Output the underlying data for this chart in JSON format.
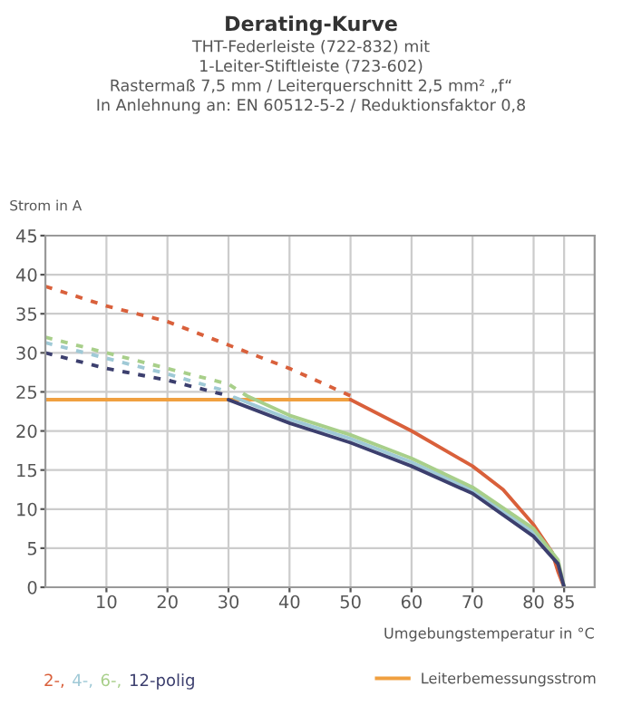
{
  "chart_data": {
    "type": "line",
    "title": "Derating-Kurve",
    "subtitle": "THT-Federleiste (722-832) mit\n1-Leiter-Stiftleiste (723-602)\nRastermaß 7,5 mm / Leiterquerschnitt 2,5 mm² „f“\nIn Anlehnung an: EN 60512-5-2 / Reduktionsfaktor 0,8",
    "xlabel": "Umgebungstemperatur in °C",
    "ylabel": "Strom in A",
    "xlim": [
      0,
      90
    ],
    "ylim": [
      0,
      45
    ],
    "xticks": [
      10,
      20,
      30,
      40,
      50,
      60,
      70,
      80,
      85
    ],
    "yticks": [
      0,
      5,
      10,
      15,
      20,
      25,
      30,
      35,
      40,
      45
    ],
    "grid": true,
    "legend": "bottom",
    "marker": "none",
    "series": [
      {
        "x": [
          0,
          10,
          20,
          30,
          40,
          50
        ],
        "values": [
          38.5,
          36,
          34,
          31,
          28,
          24.5
        ],
        "color": "#d9603b",
        "line_style": "dashed"
      },
      {
        "x": [
          0,
          10,
          20,
          30
        ],
        "values": [
          31.3,
          29.3,
          27.3,
          25
        ],
        "color": "#9fc9d6",
        "line_style": "dashed"
      },
      {
        "x": [
          0,
          10,
          20,
          30,
          33
        ],
        "values": [
          32,
          30,
          28,
          26,
          24.5
        ],
        "color": "#a8cf8a",
        "line_style": "dashed"
      },
      {
        "x": [
          0,
          10,
          20,
          30
        ],
        "values": [
          30,
          28,
          26.5,
          24.5
        ],
        "color": "#3c3f6e",
        "line_style": "dashed"
      },
      {
        "name": "Leiterbemessungsstrom",
        "x": [
          0,
          50
        ],
        "values": [
          24,
          24
        ],
        "color": "#f0a040",
        "line_style": "solid"
      },
      {
        "name": "2-,",
        "x": [
          50,
          60,
          70,
          75,
          80,
          83,
          84,
          85
        ],
        "values": [
          24,
          20,
          15.5,
          12.5,
          8,
          4.5,
          2,
          0
        ],
        "color": "#d9603b",
        "line_style": "solid"
      },
      {
        "name": "4-,",
        "x": [
          31,
          40,
          50,
          60,
          70,
          80,
          84,
          85
        ],
        "values": [
          24.3,
          21.5,
          19,
          16,
          12.4,
          7,
          3.2,
          0
        ],
        "color": "#9fc9d6",
        "line_style": "solid"
      },
      {
        "name": "6-,",
        "x": [
          33,
          40,
          50,
          60,
          70,
          80,
          84,
          85
        ],
        "values": [
          24.5,
          22,
          19.5,
          16.5,
          12.8,
          7.5,
          3.5,
          0
        ],
        "color": "#a8cf8a",
        "line_style": "solid"
      },
      {
        "name": "12-polig",
        "x": [
          30,
          40,
          50,
          60,
          70,
          80,
          84,
          85
        ],
        "values": [
          24,
          21,
          18.5,
          15.5,
          12,
          6.5,
          3,
          0
        ],
        "color": "#3c3f6e",
        "line_style": "solid"
      }
    ]
  }
}
